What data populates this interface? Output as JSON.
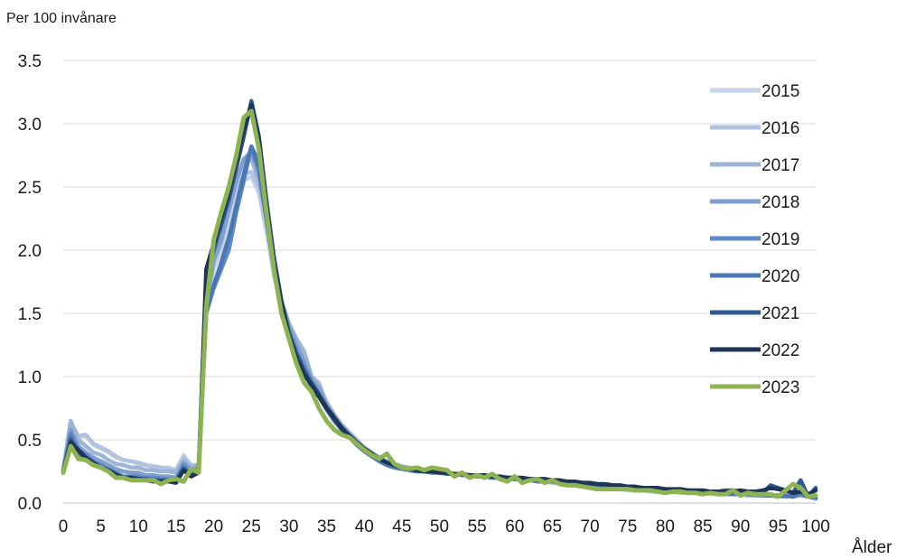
{
  "chart_data": {
    "type": "line",
    "ylabel": "Per 100 invånare",
    "xlabel": "Ålder",
    "ylim": [
      0,
      3.5
    ],
    "xlim": [
      0,
      100
    ],
    "yticks": [
      "0.0",
      "0.5",
      "1.0",
      "1.5",
      "2.0",
      "2.5",
      "3.0",
      "3.5"
    ],
    "xticks": [
      "0",
      "5",
      "10",
      "15",
      "20",
      "25",
      "30",
      "35",
      "40",
      "45",
      "50",
      "55",
      "60",
      "65",
      "70",
      "75",
      "80",
      "85",
      "90",
      "95",
      "100"
    ],
    "grid": "horizontal",
    "legend": "right",
    "x": [
      0,
      1,
      2,
      3,
      4,
      5,
      6,
      7,
      8,
      9,
      10,
      11,
      12,
      13,
      14,
      15,
      16,
      17,
      18,
      19,
      20,
      21,
      22,
      23,
      24,
      25,
      26,
      27,
      28,
      29,
      30,
      31,
      32,
      33,
      34,
      35,
      36,
      37,
      38,
      39,
      40,
      41,
      42,
      43,
      44,
      45,
      46,
      47,
      48,
      49,
      50,
      51,
      52,
      53,
      54,
      55,
      56,
      57,
      58,
      59,
      60,
      61,
      62,
      63,
      64,
      65,
      66,
      67,
      68,
      69,
      70,
      71,
      72,
      73,
      74,
      75,
      76,
      77,
      78,
      79,
      80,
      81,
      82,
      83,
      84,
      85,
      86,
      87,
      88,
      89,
      90,
      91,
      92,
      93,
      94,
      95,
      96,
      97,
      98,
      99,
      100
    ],
    "series": [
      {
        "name": "2015",
        "color": "#c6d3e8",
        "values": [
          0.28,
          0.62,
          0.52,
          0.53,
          0.46,
          0.43,
          0.4,
          0.36,
          0.34,
          0.33,
          0.31,
          0.3,
          0.29,
          0.28,
          0.28,
          0.26,
          0.38,
          0.3,
          0.3,
          1.5,
          1.85,
          2.0,
          2.25,
          2.45,
          2.55,
          2.58,
          2.45,
          2.15,
          1.8,
          1.55,
          1.35,
          1.2,
          1.1,
          0.98,
          0.85,
          0.75,
          0.67,
          0.6,
          0.55,
          0.48,
          0.42,
          0.38,
          0.35,
          0.32,
          0.3,
          0.28,
          0.27,
          0.26,
          0.25,
          0.25,
          0.24,
          0.24,
          0.23,
          0.22,
          0.22,
          0.22,
          0.21,
          0.21,
          0.2,
          0.2,
          0.19,
          0.18,
          0.18,
          0.17,
          0.17,
          0.16,
          0.15,
          0.15,
          0.14,
          0.14,
          0.13,
          0.12,
          0.12,
          0.11,
          0.11,
          0.1,
          0.1,
          0.1,
          0.09,
          0.09,
          0.09,
          0.09,
          0.08,
          0.08,
          0.08,
          0.08,
          0.07,
          0.07,
          0.08,
          0.07,
          0.07,
          0.07,
          0.06,
          0.07,
          0.06,
          0.06,
          0.05,
          0.07,
          0.06,
          0.05,
          0.03
        ]
      },
      {
        "name": "2016",
        "color": "#b2c3df",
        "values": [
          0.27,
          0.64,
          0.53,
          0.54,
          0.47,
          0.44,
          0.41,
          0.37,
          0.34,
          0.33,
          0.32,
          0.3,
          0.29,
          0.28,
          0.27,
          0.26,
          0.36,
          0.3,
          0.3,
          1.55,
          1.9,
          2.05,
          2.3,
          2.5,
          2.6,
          2.62,
          2.5,
          2.2,
          1.85,
          1.58,
          1.38,
          1.25,
          1.2,
          1.0,
          0.95,
          0.78,
          0.68,
          0.62,
          0.55,
          0.48,
          0.42,
          0.38,
          0.35,
          0.33,
          0.3,
          0.29,
          0.27,
          0.26,
          0.25,
          0.25,
          0.24,
          0.24,
          0.23,
          0.23,
          0.22,
          0.22,
          0.21,
          0.21,
          0.2,
          0.2,
          0.19,
          0.19,
          0.18,
          0.18,
          0.17,
          0.16,
          0.16,
          0.15,
          0.15,
          0.14,
          0.13,
          0.13,
          0.12,
          0.12,
          0.11,
          0.11,
          0.1,
          0.1,
          0.1,
          0.09,
          0.09,
          0.09,
          0.08,
          0.08,
          0.08,
          0.08,
          0.08,
          0.07,
          0.07,
          0.07,
          0.07,
          0.06,
          0.07,
          0.06,
          0.06,
          0.05,
          0.06,
          0.05,
          0.07,
          0.05,
          0.04
        ]
      },
      {
        "name": "2017",
        "color": "#9fb5d8",
        "values": [
          0.26,
          0.65,
          0.5,
          0.45,
          0.4,
          0.38,
          0.34,
          0.31,
          0.3,
          0.28,
          0.28,
          0.26,
          0.26,
          0.25,
          0.25,
          0.24,
          0.34,
          0.28,
          0.3,
          1.6,
          1.95,
          2.1,
          2.35,
          2.55,
          2.7,
          2.72,
          2.55,
          2.25,
          1.9,
          1.6,
          1.42,
          1.3,
          1.2,
          1.0,
          0.93,
          0.8,
          0.7,
          0.62,
          0.56,
          0.5,
          0.44,
          0.4,
          0.36,
          0.33,
          0.31,
          0.29,
          0.28,
          0.27,
          0.26,
          0.25,
          0.25,
          0.24,
          0.23,
          0.23,
          0.22,
          0.22,
          0.21,
          0.21,
          0.2,
          0.2,
          0.19,
          0.19,
          0.18,
          0.18,
          0.17,
          0.17,
          0.16,
          0.15,
          0.15,
          0.14,
          0.14,
          0.13,
          0.13,
          0.12,
          0.12,
          0.11,
          0.11,
          0.1,
          0.1,
          0.1,
          0.09,
          0.09,
          0.09,
          0.08,
          0.08,
          0.08,
          0.08,
          0.07,
          0.07,
          0.07,
          0.07,
          0.06,
          0.06,
          0.06,
          0.06,
          0.05,
          0.06,
          0.05,
          0.06,
          0.05,
          0.04
        ]
      },
      {
        "name": "2018",
        "color": "#7f9fcd",
        "values": [
          0.25,
          0.58,
          0.45,
          0.4,
          0.36,
          0.33,
          0.3,
          0.27,
          0.25,
          0.24,
          0.24,
          0.22,
          0.22,
          0.21,
          0.21,
          0.2,
          0.32,
          0.26,
          0.28,
          1.58,
          1.92,
          2.08,
          2.32,
          2.55,
          2.72,
          2.78,
          2.6,
          2.25,
          1.88,
          1.58,
          1.4,
          1.25,
          1.12,
          0.98,
          0.9,
          0.78,
          0.68,
          0.6,
          0.54,
          0.48,
          0.43,
          0.39,
          0.35,
          0.32,
          0.3,
          0.28,
          0.27,
          0.26,
          0.25,
          0.25,
          0.24,
          0.24,
          0.23,
          0.23,
          0.22,
          0.22,
          0.21,
          0.21,
          0.2,
          0.2,
          0.19,
          0.19,
          0.18,
          0.18,
          0.17,
          0.17,
          0.16,
          0.16,
          0.15,
          0.15,
          0.14,
          0.13,
          0.13,
          0.12,
          0.12,
          0.11,
          0.11,
          0.1,
          0.1,
          0.1,
          0.09,
          0.09,
          0.09,
          0.08,
          0.08,
          0.08,
          0.08,
          0.07,
          0.07,
          0.07,
          0.07,
          0.07,
          0.06,
          0.06,
          0.06,
          0.05,
          0.06,
          0.05,
          0.07,
          0.05,
          0.04
        ]
      },
      {
        "name": "2019",
        "color": "#5d89c7",
        "values": [
          0.24,
          0.55,
          0.42,
          0.38,
          0.33,
          0.3,
          0.27,
          0.24,
          0.21,
          0.21,
          0.21,
          0.2,
          0.2,
          0.19,
          0.19,
          0.18,
          0.3,
          0.24,
          0.26,
          1.5,
          1.7,
          1.85,
          2.0,
          2.3,
          2.55,
          2.82,
          2.7,
          2.3,
          1.9,
          1.58,
          1.35,
          1.2,
          1.08,
          0.95,
          0.86,
          0.75,
          0.66,
          0.58,
          0.52,
          0.47,
          0.42,
          0.38,
          0.34,
          0.31,
          0.29,
          0.27,
          0.26,
          0.25,
          0.25,
          0.24,
          0.24,
          0.23,
          0.23,
          0.22,
          0.22,
          0.21,
          0.21,
          0.2,
          0.2,
          0.19,
          0.19,
          0.18,
          0.18,
          0.17,
          0.17,
          0.17,
          0.16,
          0.16,
          0.15,
          0.15,
          0.14,
          0.14,
          0.13,
          0.13,
          0.12,
          0.12,
          0.11,
          0.11,
          0.1,
          0.1,
          0.1,
          0.09,
          0.09,
          0.09,
          0.08,
          0.08,
          0.08,
          0.08,
          0.07,
          0.07,
          0.07,
          0.07,
          0.07,
          0.06,
          0.06,
          0.06,
          0.05,
          0.06,
          0.07,
          0.05,
          0.04
        ]
      },
      {
        "name": "2020",
        "color": "#4a78b4",
        "values": [
          0.24,
          0.52,
          0.4,
          0.36,
          0.31,
          0.28,
          0.25,
          0.22,
          0.2,
          0.19,
          0.19,
          0.19,
          0.18,
          0.18,
          0.18,
          0.17,
          0.28,
          0.22,
          0.25,
          1.52,
          1.72,
          1.9,
          2.1,
          2.35,
          2.6,
          2.82,
          2.65,
          2.25,
          1.85,
          1.55,
          1.32,
          1.18,
          1.05,
          0.92,
          0.84,
          0.74,
          0.65,
          0.58,
          0.52,
          0.46,
          0.41,
          0.37,
          0.33,
          0.3,
          0.28,
          0.27,
          0.26,
          0.25,
          0.25,
          0.24,
          0.24,
          0.23,
          0.23,
          0.22,
          0.22,
          0.21,
          0.21,
          0.2,
          0.2,
          0.19,
          0.19,
          0.18,
          0.18,
          0.18,
          0.17,
          0.17,
          0.16,
          0.16,
          0.15,
          0.15,
          0.14,
          0.14,
          0.13,
          0.13,
          0.12,
          0.12,
          0.11,
          0.11,
          0.11,
          0.1,
          0.1,
          0.1,
          0.09,
          0.09,
          0.09,
          0.08,
          0.08,
          0.08,
          0.08,
          0.07,
          0.07,
          0.07,
          0.07,
          0.06,
          0.06,
          0.06,
          0.06,
          0.05,
          0.08,
          0.05,
          0.04
        ]
      },
      {
        "name": "2021",
        "color": "#2f5a92",
        "values": [
          0.24,
          0.5,
          0.4,
          0.35,
          0.31,
          0.28,
          0.26,
          0.23,
          0.2,
          0.2,
          0.19,
          0.19,
          0.18,
          0.18,
          0.18,
          0.17,
          0.27,
          0.22,
          0.25,
          1.8,
          2.0,
          2.2,
          2.4,
          2.65,
          2.9,
          3.18,
          2.9,
          2.4,
          1.95,
          1.6,
          1.35,
          1.18,
          1.05,
          0.95,
          0.86,
          0.76,
          0.68,
          0.6,
          0.54,
          0.48,
          0.43,
          0.39,
          0.35,
          0.32,
          0.3,
          0.28,
          0.27,
          0.26,
          0.25,
          0.25,
          0.24,
          0.24,
          0.23,
          0.23,
          0.22,
          0.22,
          0.22,
          0.21,
          0.21,
          0.2,
          0.2,
          0.19,
          0.19,
          0.18,
          0.18,
          0.18,
          0.17,
          0.17,
          0.16,
          0.16,
          0.15,
          0.15,
          0.14,
          0.14,
          0.13,
          0.13,
          0.12,
          0.12,
          0.11,
          0.11,
          0.11,
          0.1,
          0.1,
          0.1,
          0.09,
          0.09,
          0.09,
          0.09,
          0.1,
          0.1,
          0.09,
          0.09,
          0.09,
          0.08,
          0.14,
          0.12,
          0.1,
          0.08,
          0.18,
          0.05,
          0.12
        ]
      },
      {
        "name": "2022",
        "color": "#1e3556",
        "values": [
          0.25,
          0.48,
          0.42,
          0.36,
          0.32,
          0.28,
          0.26,
          0.22,
          0.2,
          0.2,
          0.19,
          0.18,
          0.17,
          0.17,
          0.17,
          0.16,
          0.26,
          0.21,
          0.24,
          1.85,
          2.05,
          2.25,
          2.45,
          2.7,
          2.95,
          3.15,
          2.88,
          2.35,
          1.9,
          1.58,
          1.32,
          1.15,
          1.02,
          0.93,
          0.84,
          0.75,
          0.67,
          0.59,
          0.53,
          0.48,
          0.43,
          0.39,
          0.35,
          0.32,
          0.3,
          0.28,
          0.27,
          0.26,
          0.25,
          0.25,
          0.24,
          0.24,
          0.23,
          0.23,
          0.22,
          0.22,
          0.22,
          0.21,
          0.21,
          0.2,
          0.2,
          0.2,
          0.19,
          0.19,
          0.19,
          0.18,
          0.18,
          0.17,
          0.17,
          0.16,
          0.16,
          0.15,
          0.15,
          0.14,
          0.14,
          0.13,
          0.13,
          0.12,
          0.12,
          0.12,
          0.11,
          0.11,
          0.11,
          0.1,
          0.1,
          0.1,
          0.09,
          0.09,
          0.09,
          0.09,
          0.1,
          0.09,
          0.09,
          0.1,
          0.12,
          0.11,
          0.1,
          0.08,
          0.09,
          0.07,
          0.1
        ]
      },
      {
        "name": "2023",
        "color": "#8db353",
        "values": [
          0.24,
          0.45,
          0.35,
          0.34,
          0.3,
          0.28,
          0.25,
          0.2,
          0.2,
          0.18,
          0.18,
          0.18,
          0.18,
          0.15,
          0.18,
          0.19,
          0.17,
          0.27,
          0.24,
          1.55,
          2.08,
          2.3,
          2.5,
          2.75,
          3.05,
          3.1,
          2.8,
          2.3,
          1.85,
          1.5,
          1.3,
          1.1,
          0.95,
          0.88,
          0.75,
          0.65,
          0.58,
          0.54,
          0.52,
          0.47,
          0.42,
          0.38,
          0.35,
          0.39,
          0.31,
          0.28,
          0.27,
          0.28,
          0.26,
          0.28,
          0.27,
          0.26,
          0.21,
          0.24,
          0.2,
          0.22,
          0.2,
          0.23,
          0.19,
          0.17,
          0.21,
          0.16,
          0.18,
          0.19,
          0.16,
          0.18,
          0.15,
          0.14,
          0.14,
          0.13,
          0.12,
          0.11,
          0.11,
          0.11,
          0.11,
          0.11,
          0.1,
          0.1,
          0.1,
          0.09,
          0.08,
          0.09,
          0.09,
          0.08,
          0.08,
          0.07,
          0.08,
          0.07,
          0.07,
          0.1,
          0.06,
          0.08,
          0.07,
          0.07,
          0.07,
          0.05,
          0.1,
          0.15,
          0.12,
          0.05,
          0.06
        ]
      }
    ]
  }
}
